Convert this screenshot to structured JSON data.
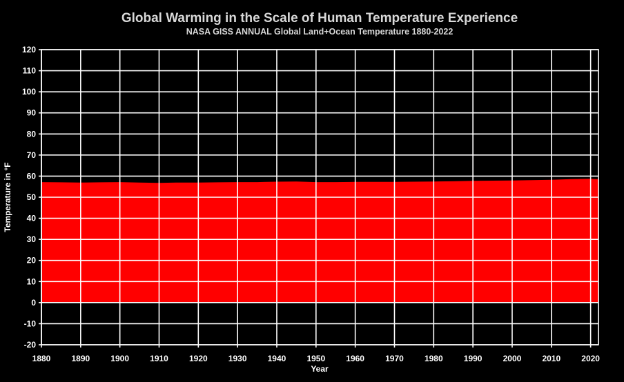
{
  "chart_data": {
    "type": "area",
    "title": "Global Warming in the Scale of Human Temperature Experience",
    "subtitle": "NASA GISS ANNUAL Global Land+Ocean Temperature 1880-2022",
    "xlabel": "Year",
    "ylabel": "Temperature in °F",
    "xlim": [
      1880,
      2022
    ],
    "ylim": [
      -20,
      120
    ],
    "x_ticks": [
      "1880",
      "1890",
      "1900",
      "1910",
      "1920",
      "1930",
      "1940",
      "1950",
      "1960",
      "1970",
      "1980",
      "1990",
      "2000",
      "2010",
      "2020"
    ],
    "y_ticks": [
      "120",
      "110",
      "100",
      "90",
      "80",
      "70",
      "60",
      "50",
      "40",
      "30",
      "20",
      "10",
      "0",
      "-10",
      "-20"
    ],
    "grid": true,
    "fill_color": "#ff0000",
    "background_color": "#000000",
    "series": [
      {
        "x": [
          1880,
          1885,
          1890,
          1895,
          1900,
          1905,
          1910,
          1915,
          1920,
          1925,
          1930,
          1935,
          1940,
          1945,
          1950,
          1955,
          1960,
          1965,
          1970,
          1975,
          1980,
          1985,
          1990,
          1995,
          2000,
          2005,
          2010,
          2015,
          2020,
          2022
        ],
        "values": [
          57.0,
          56.9,
          56.8,
          56.9,
          57.0,
          56.8,
          56.6,
          56.8,
          56.8,
          56.9,
          57.0,
          57.0,
          57.2,
          57.3,
          57.0,
          57.0,
          57.1,
          57.1,
          57.1,
          57.2,
          57.3,
          57.4,
          57.6,
          57.7,
          57.8,
          57.9,
          58.1,
          58.4,
          58.6,
          58.4
        ]
      }
    ]
  }
}
